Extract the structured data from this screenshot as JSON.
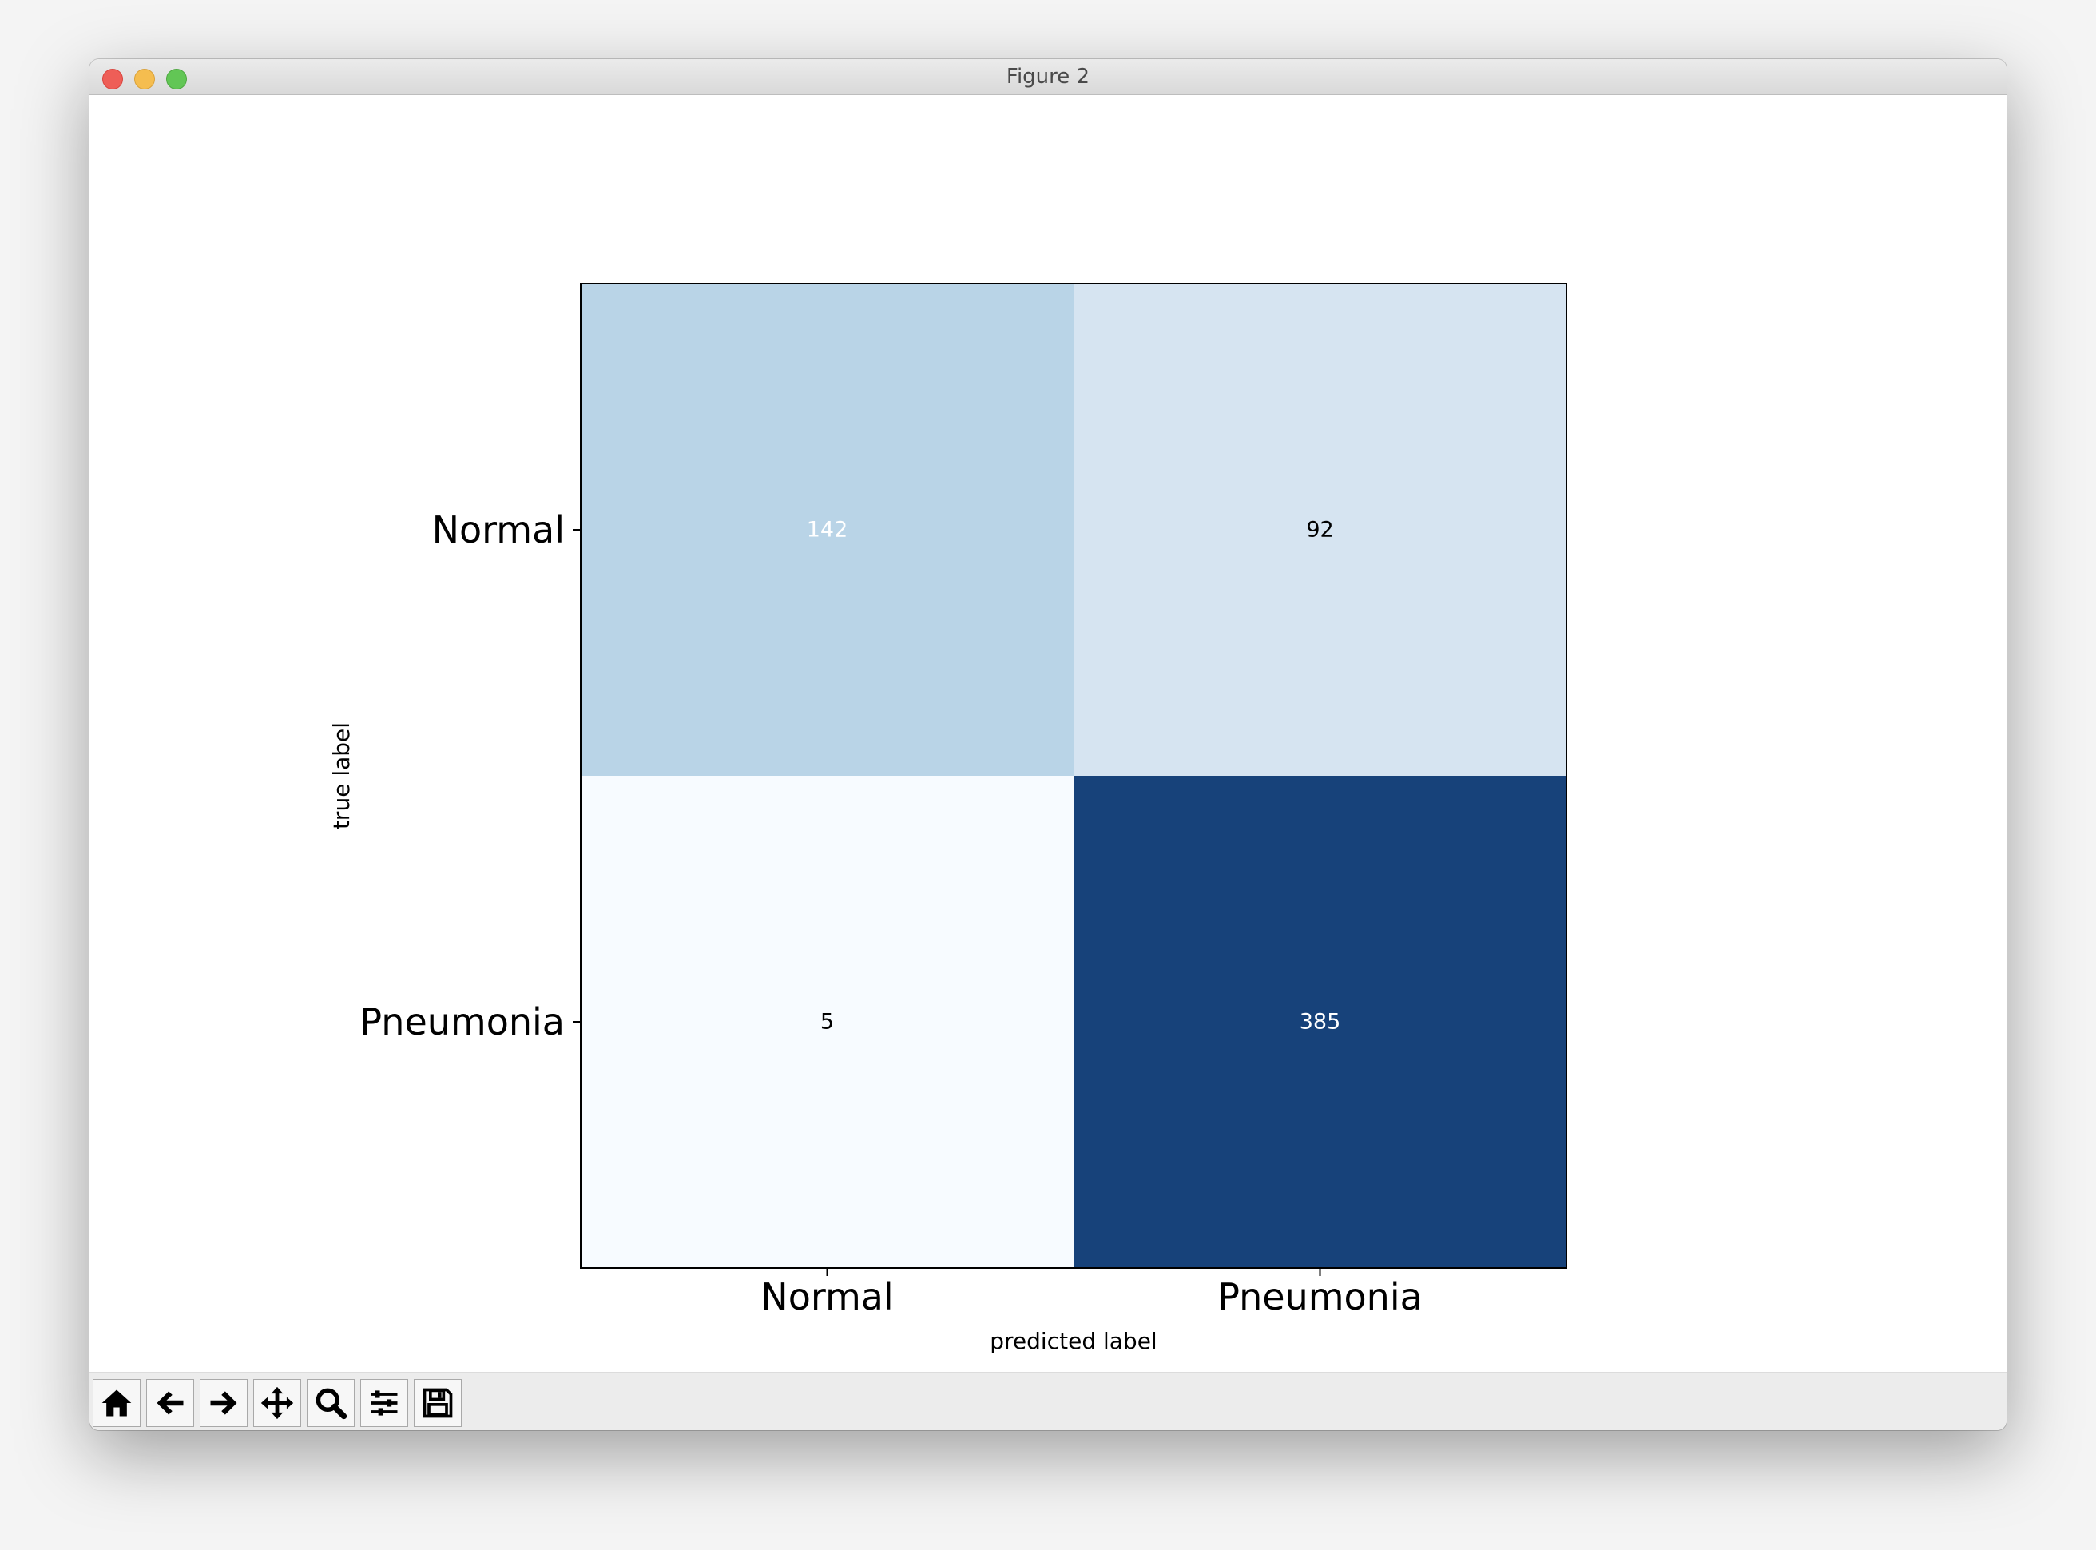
{
  "window": {
    "title": "Figure 2"
  },
  "toolbar": {
    "tools": [
      {
        "icon": "home-icon"
      },
      {
        "icon": "back-arrow-icon"
      },
      {
        "icon": "forward-arrow-icon"
      },
      {
        "icon": "pan-icon"
      },
      {
        "icon": "zoom-icon"
      },
      {
        "icon": "subplots-config-icon"
      },
      {
        "icon": "save-icon"
      }
    ]
  },
  "chart_data": {
    "type": "heatmap",
    "title": "",
    "xlabel": "predicted label",
    "ylabel": "true label",
    "x_categories": [
      "Normal",
      "Pneumonia"
    ],
    "y_categories": [
      "Normal",
      "Pneumonia"
    ],
    "values": [
      [
        142,
        92
      ],
      [
        5,
        385
      ]
    ],
    "colormap": "Blues",
    "cell_colors": [
      [
        "#b9d4e7",
        "#d6e4f1"
      ],
      [
        "#f7fbff",
        "#17427a"
      ]
    ],
    "value_text_colors": [
      [
        "#ffffff",
        "#000000"
      ],
      [
        "#000000",
        "#ffffff"
      ]
    ],
    "grid": false
  }
}
